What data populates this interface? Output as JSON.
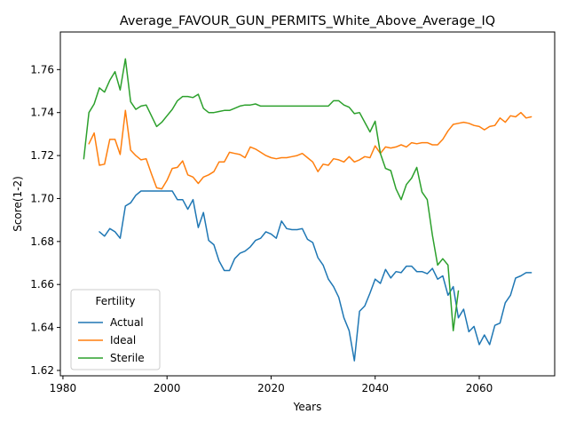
{
  "chart_data": {
    "type": "line",
    "title": "Average_FAVOUR_GUN_PERMITS_White_Above_Average_IQ",
    "xlabel": "Years",
    "ylabel": "Score(1-2)",
    "xlim": [
      1979.5,
      2074.5
    ],
    "ylim": [
      1.6175,
      1.7775
    ],
    "xticks": [
      1980,
      2000,
      2020,
      2040,
      2060
    ],
    "yticks": [
      1.62,
      1.64,
      1.66,
      1.68,
      1.7,
      1.72,
      1.74,
      1.76
    ],
    "ytick_labels": [
      "1.62",
      "1.64",
      "1.66",
      "1.68",
      "1.70",
      "1.72",
      "1.74",
      "1.76"
    ],
    "grid": false,
    "legend": {
      "title": "Fertility",
      "position": "lower-left"
    },
    "series": [
      {
        "name": "Actual",
        "color": "#1f77b4",
        "x": [
          1987,
          1988,
          1989,
          1990,
          1991,
          1992,
          1993,
          1994,
          1995,
          1996,
          1997,
          1998,
          1999,
          2000,
          2001,
          2002,
          2003,
          2004,
          2005,
          2006,
          2007,
          2008,
          2009,
          2010,
          2011,
          2012,
          2013,
          2014,
          2015,
          2016,
          2017,
          2018,
          2019,
          2020,
          2021,
          2022,
          2023,
          2024,
          2025,
          2026,
          2027,
          2028,
          2029,
          2030,
          2031,
          2032,
          2033,
          2034,
          2035,
          2036,
          2037,
          2038,
          2039,
          2040,
          2041,
          2042,
          2043,
          2044,
          2045,
          2046,
          2047,
          2048,
          2049,
          2050,
          2051,
          2052,
          2053,
          2054,
          2055,
          2056,
          2057,
          2058,
          2059,
          2060,
          2061,
          2062,
          2063,
          2064,
          2065,
          2066,
          2067,
          2068,
          2069,
          2070
        ],
        "values": [
          1.6845,
          1.6825,
          1.686,
          1.6845,
          1.6815,
          1.6965,
          1.698,
          1.7015,
          1.7035,
          1.7035,
          1.7035,
          1.7035,
          1.7035,
          1.7035,
          1.7035,
          1.6995,
          1.6995,
          1.695,
          1.6995,
          1.6865,
          1.6935,
          1.6805,
          1.6785,
          1.671,
          1.6665,
          1.6665,
          1.672,
          1.6745,
          1.6755,
          1.6775,
          1.6805,
          1.6815,
          1.6845,
          1.6835,
          1.6815,
          1.6895,
          1.686,
          1.6855,
          1.6855,
          1.686,
          1.681,
          1.6795,
          1.6725,
          1.669,
          1.6625,
          1.659,
          1.654,
          1.6445,
          1.6385,
          1.6245,
          1.6475,
          1.65,
          1.656,
          1.6625,
          1.6605,
          1.667,
          1.663,
          1.666,
          1.6655,
          1.6685,
          1.6685,
          1.666,
          1.666,
          1.665,
          1.6675,
          1.6625,
          1.664,
          1.655,
          1.659,
          1.6445,
          1.6485,
          1.638,
          1.6405,
          1.632,
          1.6365,
          1.632,
          1.641,
          1.642,
          1.6515,
          1.655,
          1.663,
          1.664,
          1.6655,
          1.6655
        ]
      },
      {
        "name": "Ideal",
        "color": "#ff7f0e",
        "x": [
          1985,
          1986,
          1987,
          1988,
          1989,
          1990,
          1991,
          1992,
          1993,
          1994,
          1995,
          1996,
          1997,
          1998,
          1999,
          2000,
          2001,
          2002,
          2003,
          2004,
          2005,
          2006,
          2007,
          2008,
          2009,
          2010,
          2011,
          2012,
          2013,
          2014,
          2015,
          2016,
          2017,
          2018,
          2019,
          2020,
          2021,
          2022,
          2023,
          2024,
          2025,
          2026,
          2027,
          2028,
          2029,
          2030,
          2031,
          2032,
          2033,
          2034,
          2035,
          2036,
          2037,
          2038,
          2039,
          2040,
          2041,
          2042,
          2043,
          2044,
          2045,
          2046,
          2047,
          2048,
          2049,
          2050,
          2051,
          2052,
          2053,
          2054,
          2055,
          2056,
          2057,
          2058,
          2059,
          2060,
          2061,
          2062,
          2063,
          2064,
          2065,
          2066,
          2067,
          2068,
          2069,
          2070
        ],
        "values": [
          1.7255,
          1.7305,
          1.7155,
          1.716,
          1.7275,
          1.7275,
          1.7205,
          1.741,
          1.7225,
          1.72,
          1.718,
          1.7185,
          1.7115,
          1.705,
          1.7045,
          1.7085,
          1.714,
          1.7145,
          1.7175,
          1.711,
          1.71,
          1.707,
          1.71,
          1.711,
          1.7125,
          1.717,
          1.717,
          1.7215,
          1.721,
          1.7205,
          1.719,
          1.724,
          1.723,
          1.7215,
          1.72,
          1.719,
          1.7185,
          1.719,
          1.719,
          1.7195,
          1.72,
          1.721,
          1.719,
          1.717,
          1.7125,
          1.716,
          1.7155,
          1.7185,
          1.718,
          1.717,
          1.7195,
          1.717,
          1.718,
          1.7195,
          1.719,
          1.7245,
          1.721,
          1.724,
          1.7235,
          1.724,
          1.725,
          1.724,
          1.726,
          1.7255,
          1.726,
          1.726,
          1.725,
          1.725,
          1.7275,
          1.7315,
          1.7345,
          1.735,
          1.7355,
          1.735,
          1.734,
          1.7335,
          1.732,
          1.7335,
          1.734,
          1.7375,
          1.7355,
          1.7385,
          1.738,
          1.74,
          1.7375,
          1.738
        ]
      },
      {
        "name": "Sterile",
        "color": "#2ca02c",
        "x": [
          1984,
          1985,
          1986,
          1987,
          1988,
          1989,
          1990,
          1991,
          1992,
          1993,
          1994,
          1995,
          1996,
          1997,
          1998,
          1999,
          2000,
          2001,
          2002,
          2003,
          2004,
          2005,
          2006,
          2007,
          2008,
          2009,
          2010,
          2011,
          2012,
          2013,
          2014,
          2015,
          2016,
          2017,
          2018,
          2019,
          2020,
          2021,
          2022,
          2023,
          2024,
          2025,
          2026,
          2027,
          2028,
          2029,
          2030,
          2031,
          2032,
          2033,
          2034,
          2035,
          2036,
          2037,
          2038,
          2039,
          2040,
          2041,
          2042,
          2043,
          2044,
          2045,
          2046,
          2047,
          2048,
          2049,
          2050,
          2051,
          2052,
          2053,
          2054,
          2055,
          2056
        ],
        "values": [
          1.7185,
          1.74,
          1.744,
          1.7515,
          1.7495,
          1.755,
          1.759,
          1.7505,
          1.765,
          1.745,
          1.7415,
          1.743,
          1.7435,
          1.7385,
          1.7335,
          1.7355,
          1.7385,
          1.7415,
          1.7455,
          1.7475,
          1.7475,
          1.747,
          1.7485,
          1.742,
          1.74,
          1.74,
          1.7405,
          1.741,
          1.741,
          1.742,
          1.743,
          1.7435,
          1.7435,
          1.744,
          1.743,
          1.743,
          1.743,
          1.743,
          1.743,
          1.743,
          1.743,
          1.743,
          1.743,
          1.743,
          1.743,
          1.743,
          1.743,
          1.743,
          1.7455,
          1.7455,
          1.7435,
          1.7425,
          1.7395,
          1.74,
          1.7355,
          1.731,
          1.736,
          1.721,
          1.714,
          1.713,
          1.7045,
          1.6995,
          1.7065,
          1.7095,
          1.7145,
          1.703,
          1.6995,
          1.683,
          1.669,
          1.672,
          1.669,
          1.6385,
          1.657
        ]
      }
    ]
  }
}
